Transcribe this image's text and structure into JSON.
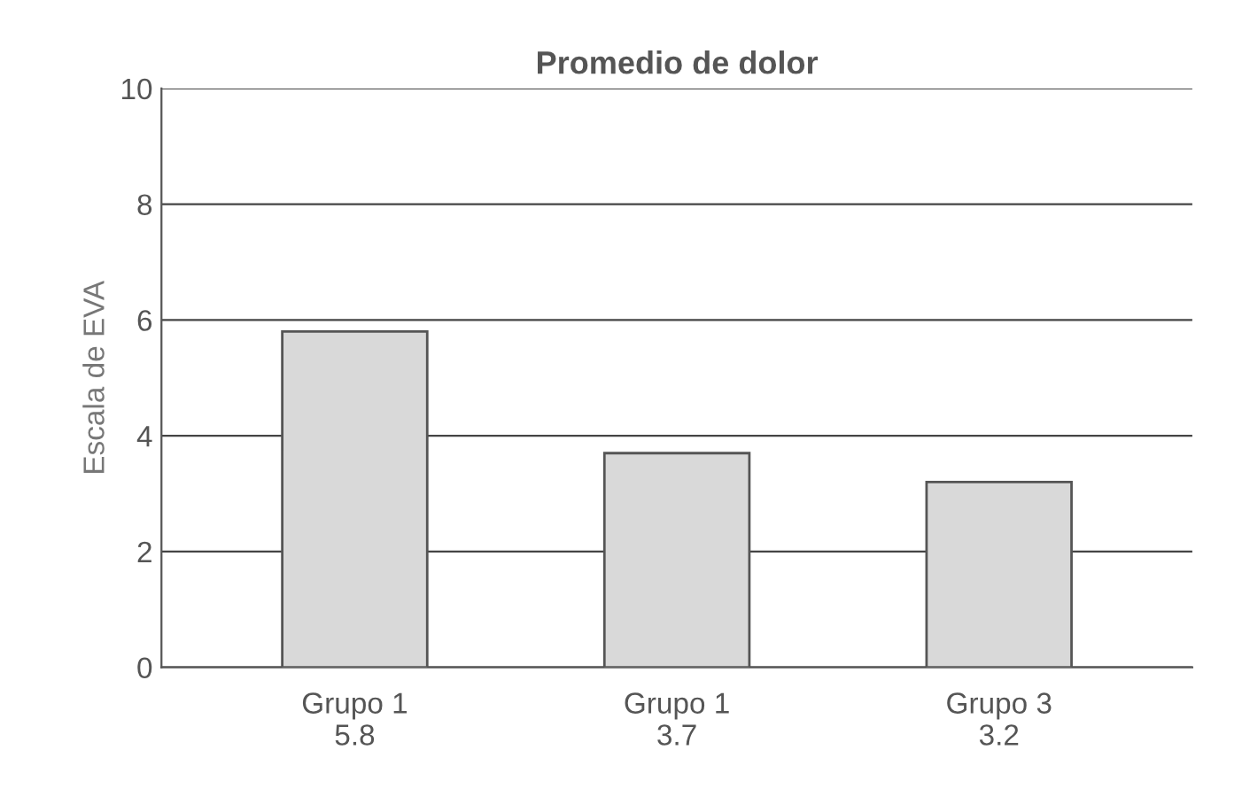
{
  "chart_data": {
    "type": "bar",
    "title": "Promedio de dolor",
    "ylabel": "Escala de EVA",
    "categories": [
      "Grupo 1",
      "Grupo 1",
      "Grupo 3"
    ],
    "values": [
      5.8,
      3.7,
      3.2
    ],
    "value_labels": [
      "5.8",
      "3.7",
      "3.2"
    ],
    "color": "#d9d9d9",
    "ylim": [
      0,
      10
    ],
    "yticks": [
      0,
      2,
      4,
      6,
      8,
      10
    ],
    "grid": "y"
  }
}
